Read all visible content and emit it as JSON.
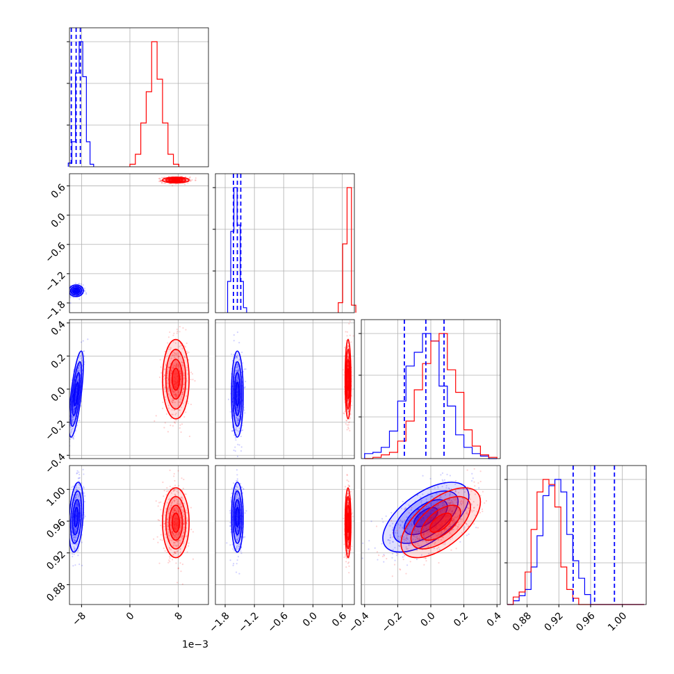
{
  "chart_data": {
    "type": "corner",
    "title": "",
    "grid": true,
    "colors": {
      "series_a": "#0000ff",
      "series_b": "#ff0000"
    },
    "params": [
      {
        "range": [
          -10.0,
          13.0
        ],
        "ticks": [
          -8,
          0,
          8
        ],
        "tick_labels": [
          "−8",
          "0",
          "8"
        ],
        "offset_label": "1e−3"
      },
      {
        "range": [
          -2.0,
          0.85
        ],
        "ticks": [
          -1.8,
          -1.2,
          -0.6,
          0.0,
          0.6
        ],
        "tick_labels": [
          "−1.8",
          "−1.2",
          "−0.6",
          "0.0",
          "0.6"
        ]
      },
      {
        "range": [
          -0.42,
          0.42
        ],
        "ticks": [
          -0.4,
          -0.2,
          0.0,
          0.2,
          0.4
        ],
        "tick_labels": [
          "−0.4",
          "−0.2",
          "0.0",
          "0.2",
          "0.4"
        ]
      },
      {
        "range": [
          0.855,
          1.03
        ],
        "ticks": [
          0.88,
          0.92,
          0.96,
          1.0
        ],
        "tick_labels": [
          "0.88",
          "0.92",
          "0.96",
          "1.00"
        ]
      }
    ],
    "series": [
      {
        "color": "#0000ff",
        "means": [
          -8.9,
          -1.55,
          -0.03,
          0.965
        ],
        "stds": [
          0.6,
          0.06,
          0.13,
          0.022
        ],
        "quantiles": [
          [
            -9.7,
            -8.9,
            -8.2
          ],
          [
            -1.63,
            -1.55,
            -1.48
          ],
          [
            -0.16,
            -0.03,
            0.08
          ],
          [
            0.938,
            0.965,
            0.99
          ]
        ],
        "correlations": {
          "0-2": 0.7,
          "0-3": 0.3,
          "2-3": 0.6
        }
      },
      {
        "color": "#ff0000",
        "means": [
          7.6,
          0.72,
          0.06,
          0.958
        ],
        "stds": [
          1.1,
          0.03,
          0.12,
          0.022
        ],
        "correlations": {
          "0-2": 0.0,
          "0-3": 0.0,
          "2-3": 0.6
        }
      }
    ],
    "histograms": [
      {
        "series_a": {
          "edges_start": -10.2,
          "bin_width": 0.6,
          "counts": [
            0.03,
            0.2,
            0.75,
            1.0,
            0.72,
            0.2,
            0.02
          ]
        },
        "series_b": {
          "edges_start": 0.0,
          "bin_width": 0.9,
          "counts": [
            0.02,
            0.1,
            0.35,
            0.6,
            1.0,
            0.7,
            0.35,
            0.1,
            0.02
          ]
        }
      },
      {
        "series_a": {
          "edges_start": -1.75,
          "bin_width": 0.065,
          "counts": [
            0.25,
            0.65,
            1.0,
            0.7,
            0.25,
            0.04
          ]
        },
        "series_b": {
          "edges_start": 0.52,
          "bin_width": 0.09,
          "counts": [
            0.08,
            0.55,
            1.0,
            0.06
          ]
        }
      },
      {
        "series_a": {
          "edges_start": -0.4,
          "bin_width": 0.05,
          "counts": [
            0.04,
            0.05,
            0.09,
            0.22,
            0.46,
            0.74,
            0.85,
            1.0,
            0.94,
            0.58,
            0.42,
            0.19,
            0.09,
            0.04,
            0.02,
            0.0
          ]
        },
        "series_b": {
          "edges_start": -0.4,
          "bin_width": 0.05,
          "counts": [
            0.0,
            0.01,
            0.03,
            0.05,
            0.14,
            0.3,
            0.55,
            0.76,
            0.94,
            1.0,
            0.71,
            0.53,
            0.23,
            0.1,
            0.03,
            0.01
          ]
        }
      },
      {
        "series_a": {
          "edges_start": 0.855,
          "bin_width": 0.0075,
          "counts": [
            0.0,
            0.03,
            0.07,
            0.12,
            0.3,
            0.55,
            0.87,
            0.95,
            1.0,
            0.9,
            0.56,
            0.35,
            0.21,
            0.08,
            0.0,
            0.0,
            0.0,
            0.0,
            0.0,
            0.0,
            0.0,
            0.0,
            0.0
          ]
        },
        "series_b": {
          "edges_start": 0.855,
          "bin_width": 0.0075,
          "counts": [
            0.0,
            0.06,
            0.1,
            0.26,
            0.6,
            0.9,
            1.0,
            0.96,
            0.78,
            0.3,
            0.12,
            0.05,
            0.0,
            0.0,
            0.0,
            0.0,
            0.0,
            0.0,
            0.0,
            0.0,
            0.0,
            0.0,
            0.0
          ]
        }
      }
    ]
  }
}
